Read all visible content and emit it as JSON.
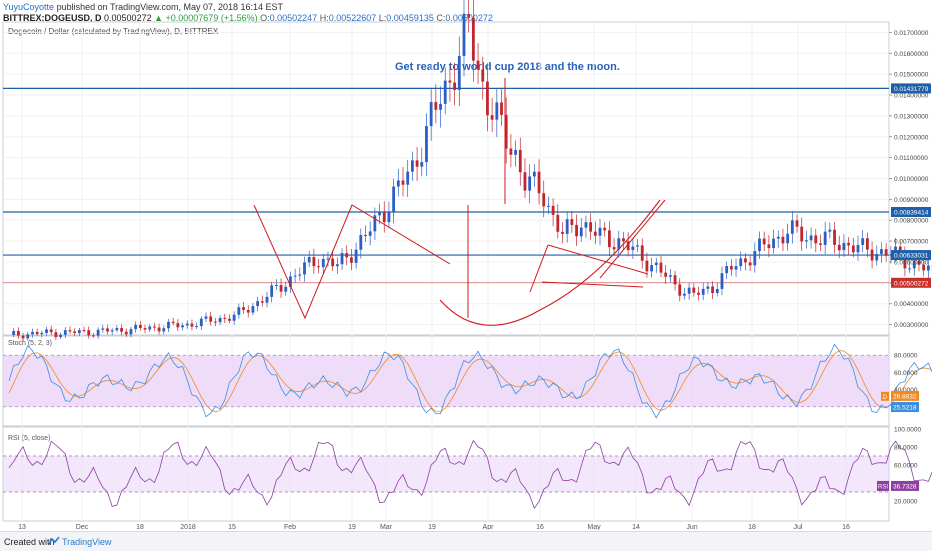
{
  "header": {
    "user": "YuyuCoyotte",
    "published": "published on TradingView.com, May 07, 2018 16:14 EST",
    "symbol": "BITTREX:DOGEUSD, D",
    "last": "0.00500272",
    "change": "▲ +0.00007679 (+1.56%)",
    "o_label": "O:",
    "o": "0.00502247",
    "h_label": "H:",
    "h": "0.00522607",
    "l_label": "L:",
    "l": "0.00459135",
    "c_label": "C:",
    "c": "0.00500272"
  },
  "main_pane": {
    "title": "Dogecoin / Dollar (calculated by TradingView), D, BITTREX",
    "annotation": "Get ready to world cup 2018 and the moon.",
    "y_ticks": [
      "0.01700000",
      "0.01600000",
      "0.01500000",
      "0.01400000",
      "0.01300000",
      "0.01200000",
      "0.01100000",
      "0.01000000",
      "0.00900000",
      "0.00800000",
      "0.00700000",
      "0.00600000",
      "0.00500000",
      "0.00400000",
      "0.00300000"
    ],
    "price_badges": [
      {
        "value": "0.01431779",
        "color": "#1f5fa8"
      },
      {
        "value": "0.00839414",
        "color": "#1f5fa8"
      },
      {
        "value": "0.00633031",
        "color": "#1f5fa8"
      },
      {
        "value": "0.00500272",
        "color": "#c9302c"
      }
    ]
  },
  "stoch_pane": {
    "title": "Stoch (5, 2, 3)",
    "y_ticks": [
      "80.0000",
      "60.0000",
      "40.0000",
      "20.0000"
    ],
    "badges": [
      {
        "value": "26.8832",
        "color": "#f08a24"
      },
      {
        "value": "25.5218",
        "color": "#3d8fdc"
      }
    ],
    "marker": "D"
  },
  "rsi_pane": {
    "title": "RSI (5, close)",
    "y_ticks": [
      "100.0000",
      "80.0000",
      "60.0000",
      "40.0000",
      "20.0000"
    ],
    "badge": {
      "label": "RSI",
      "value": "36.7328",
      "color": "#8e3fa3"
    }
  },
  "x_axis": [
    "13",
    "Dec",
    "18",
    "2018",
    "15",
    "Feb",
    "19",
    "Mar",
    "19",
    "Apr",
    "16",
    "May",
    "14",
    "Jun",
    "18",
    "Jul",
    "16"
  ],
  "footer": {
    "created": "Created with",
    "brand": "TradingView"
  },
  "colors": {
    "bull": "#2b5fc4",
    "bear": "#c0262c",
    "hline": "#1f5fa8",
    "pattern": "#d11a1f",
    "stoch_k": "#3d8fdc",
    "stoch_d": "#f08a24",
    "rsi": "#8e3fa3",
    "band": "#e8d0f7"
  },
  "chart_data": {
    "type": "candlestick",
    "title": "Dogecoin / Dollar (calculated by TradingView), D, BITTREX",
    "ylim": [
      0.0025,
      0.0175
    ],
    "ohlc_close_path": [
      [
        0,
        0.0025
      ],
      [
        8,
        0.0026
      ],
      [
        18,
        0.00265
      ],
      [
        28,
        0.0028
      ],
      [
        38,
        0.003
      ],
      [
        48,
        0.0034
      ],
      [
        54,
        0.0042
      ],
      [
        60,
        0.0052
      ],
      [
        66,
        0.0062
      ],
      [
        70,
        0.0058
      ],
      [
        76,
        0.0072
      ],
      [
        82,
        0.0092
      ],
      [
        86,
        0.0105
      ],
      [
        90,
        0.0128
      ],
      [
        94,
        0.0148
      ],
      [
        96,
        0.016
      ],
      [
        98,
        0.0172
      ],
      [
        100,
        0.0152
      ],
      [
        102,
        0.0138
      ],
      [
        104,
        0.0128
      ],
      [
        106,
        0.0118
      ],
      [
        108,
        0.0112
      ],
      [
        110,
        0.0099
      ],
      [
        114,
        0.0092
      ],
      [
        116,
        0.0082
      ],
      [
        118,
        0.0073
      ],
      [
        122,
        0.0079
      ],
      [
        126,
        0.0072
      ],
      [
        130,
        0.007
      ],
      [
        134,
        0.0064
      ],
      [
        138,
        0.0057
      ],
      [
        142,
        0.0049
      ],
      [
        146,
        0.0044
      ],
      [
        150,
        0.0048
      ],
      [
        154,
        0.0057
      ],
      [
        160,
        0.0066
      ],
      [
        166,
        0.0075
      ],
      [
        170,
        0.0072
      ],
      [
        176,
        0.007
      ],
      [
        182,
        0.0066
      ],
      [
        188,
        0.0064
      ],
      [
        194,
        0.0058
      ],
      [
        200,
        0.0052
      ],
      [
        206,
        0.0047
      ],
      [
        212,
        0.0043
      ],
      [
        218,
        0.0039
      ],
      [
        224,
        0.0038
      ],
      [
        230,
        0.0036
      ],
      [
        236,
        0.0035
      ],
      [
        242,
        0.0034
      ],
      [
        248,
        0.0033
      ],
      [
        254,
        0.0032
      ],
      [
        260,
        0.003
      ],
      [
        266,
        0.0029
      ],
      [
        272,
        0.0029
      ],
      [
        276,
        0.0031
      ],
      [
        280,
        0.0036
      ],
      [
        284,
        0.0045
      ],
      [
        288,
        0.0053
      ],
      [
        292,
        0.0059
      ],
      [
        296,
        0.0062
      ],
      [
        300,
        0.0059
      ],
      [
        304,
        0.006
      ],
      [
        308,
        0.0058
      ],
      [
        312,
        0.0059
      ],
      [
        316,
        0.0057
      ],
      [
        320,
        0.0057
      ],
      [
        324,
        0.0054
      ],
      [
        328,
        0.00500272
      ]
    ],
    "horizontal_levels": [
      0.01431779,
      0.00839414,
      0.00633031,
      0.00500272
    ],
    "stoch": {
      "k_last": 25.5218,
      "d_last": 26.8832,
      "upper": 80,
      "lower": 20
    },
    "rsi": {
      "last": 36.7328,
      "upper": 70,
      "lower": 30
    }
  }
}
